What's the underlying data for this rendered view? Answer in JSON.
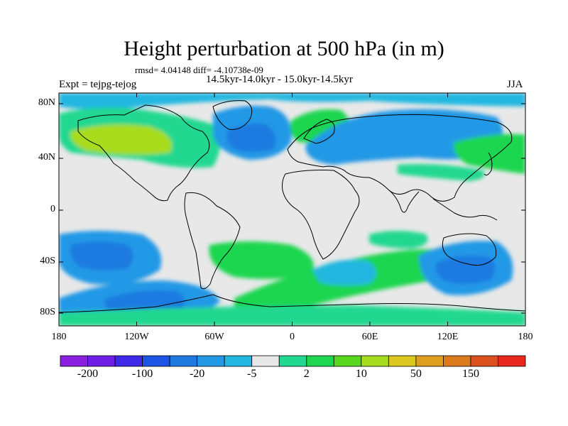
{
  "title": "Height perturbation at 500 hPa (in m)",
  "stats_line": "rmsd= 4.04148 diff= -4.10738e-09",
  "period_line": "14.5kyr-14.0kyr - 15.0kyr-14.5kyr",
  "experiment": "Expt = tejpg-tejog",
  "season": "JJA",
  "lat_ticks": [
    "80N",
    "40N",
    "0",
    "40S",
    "80S"
  ],
  "lon_ticks": [
    "180",
    "120W",
    "60W",
    "0",
    "60E",
    "120E",
    "180"
  ],
  "colorbar": {
    "labels": [
      "-200",
      "-100",
      "-20",
      "-5",
      "2",
      "10",
      "50",
      "150"
    ],
    "colors": [
      "#8a1fe0",
      "#6e1fe6",
      "#3f28e8",
      "#1e54e6",
      "#1f7ae0",
      "#2399e6",
      "#21b7e0",
      "#e8e8e8",
      "#20d890",
      "#1ed650",
      "#5ad61e",
      "#a8dc1e",
      "#dcc81e",
      "#dca01e",
      "#dc7a1e",
      "#dc501e",
      "#e8281e"
    ]
  },
  "field_colors": {
    "weak_neg": "#21b7e0",
    "mod_neg": "#2399e6",
    "strong_neg": "#1f7ae0",
    "weak_pos": "#20d890",
    "mod_pos": "#1ed650",
    "strong_pos": "#a8dc1e",
    "neutral": "#e8e8e8"
  }
}
